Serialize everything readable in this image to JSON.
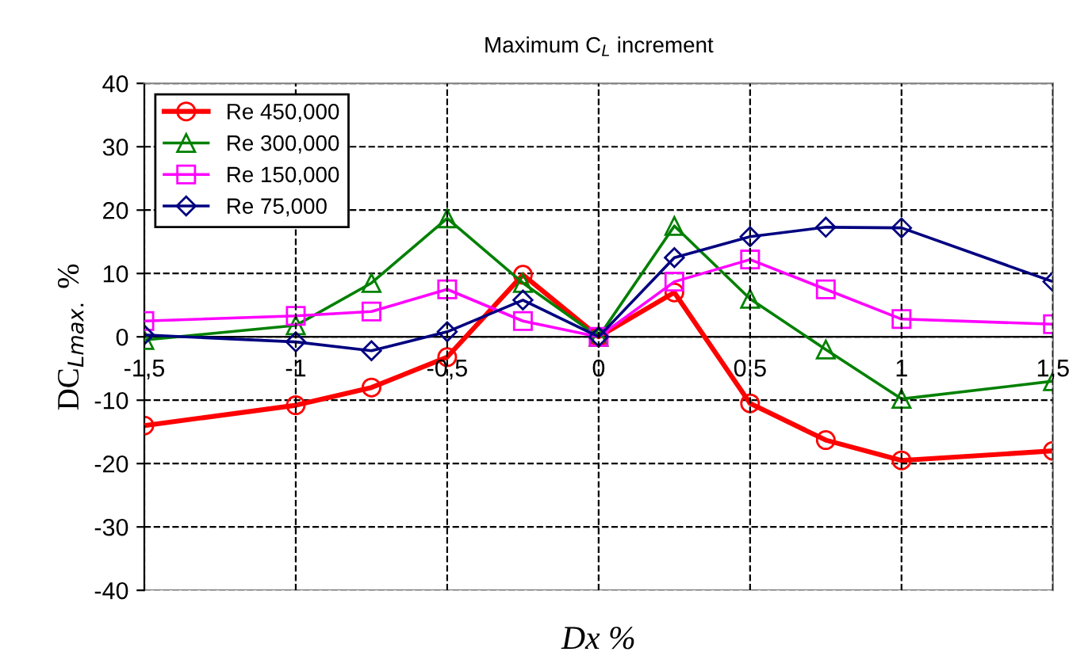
{
  "chart_data": {
    "type": "line",
    "title": "Maximum C$_{L}$ increment",
    "xlabel": "Dx %",
    "ylabel": "DC$_{Lmax.}$ %",
    "x": [
      -1.5,
      -1,
      -0.75,
      -0.5,
      -0.25,
      0,
      0.25,
      0.5,
      0.75,
      1,
      1.5
    ],
    "series": [
      {
        "name": "Re 450,000",
        "color": "#ff0000",
        "marker": "circle",
        "values": [
          -14,
          -10.8,
          -8,
          -3.2,
          9.8,
          0,
          7,
          -10.5,
          -16.3,
          -19.5,
          -18
        ]
      },
      {
        "name": "Re 300,000",
        "color": "#008000",
        "marker": "triangle",
        "values": [
          -0.5,
          1.8,
          8.5,
          18.7,
          8.5,
          0,
          17.5,
          6,
          -2,
          -9.8,
          -7
        ]
      },
      {
        "name": "Re 150,000",
        "color": "#ff00ff",
        "marker": "square",
        "values": [
          2.5,
          3.3,
          4,
          7.5,
          2.5,
          0,
          8.7,
          12.2,
          7.5,
          2.8,
          2
        ]
      },
      {
        "name": "Re 75,000",
        "color": "#000080",
        "marker": "diamond",
        "values": [
          0.3,
          -0.8,
          -2.2,
          0.8,
          5.8,
          0,
          12.5,
          15.8,
          17.3,
          17.2,
          8.7
        ]
      }
    ],
    "xlim": [
      -1.5,
      1.5
    ],
    "ylim": [
      -40,
      40
    ],
    "xticks": [
      {
        "value": -1.5,
        "label": "-1,5"
      },
      -1,
      {
        "value": -0.5,
        "label": "-0,5"
      },
      0,
      {
        "value": 0.5,
        "label": "0,5"
      },
      1,
      {
        "value": 1.5,
        "label": "1,5"
      }
    ],
    "yticks": [
      -40,
      -30,
      -20,
      -10,
      0,
      10,
      20,
      30,
      40
    ],
    "grid": true,
    "legend": "top left",
    "line_style": "solid"
  }
}
